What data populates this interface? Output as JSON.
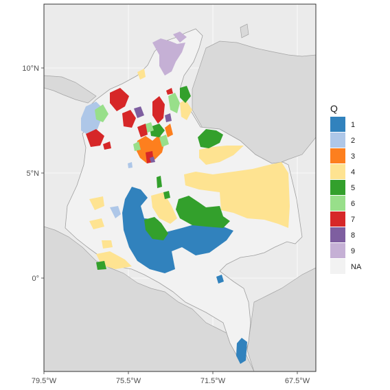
{
  "map": {
    "axes": {
      "x_ticks": [
        "79.5°W",
        "75.5°W",
        "71.5°W",
        "67.5°W"
      ],
      "y_ticks": [
        "10°N",
        "5°N",
        "0°"
      ]
    },
    "legend": {
      "title": "Q",
      "entries": [
        {
          "label": "1",
          "color": "#3182bd"
        },
        {
          "label": "2",
          "color": "#aec7e8"
        },
        {
          "label": "3",
          "color": "#fd7f1e"
        },
        {
          "label": "4",
          "color": "#fee391"
        },
        {
          "label": "5",
          "color": "#33a02c"
        },
        {
          "label": "6",
          "color": "#98df8a"
        },
        {
          "label": "7",
          "color": "#d62728"
        },
        {
          "label": "8",
          "color": "#7e5ea0"
        },
        {
          "label": "9",
          "color": "#c5b0d5"
        },
        {
          "label": "NA",
          "color": "#f2f2f2"
        }
      ]
    },
    "colors": {
      "land_outside": "#d9d9d9",
      "sea": "#ebebeb",
      "country_na": "#f2f2f2",
      "border": "#9e9e9e"
    }
  }
}
